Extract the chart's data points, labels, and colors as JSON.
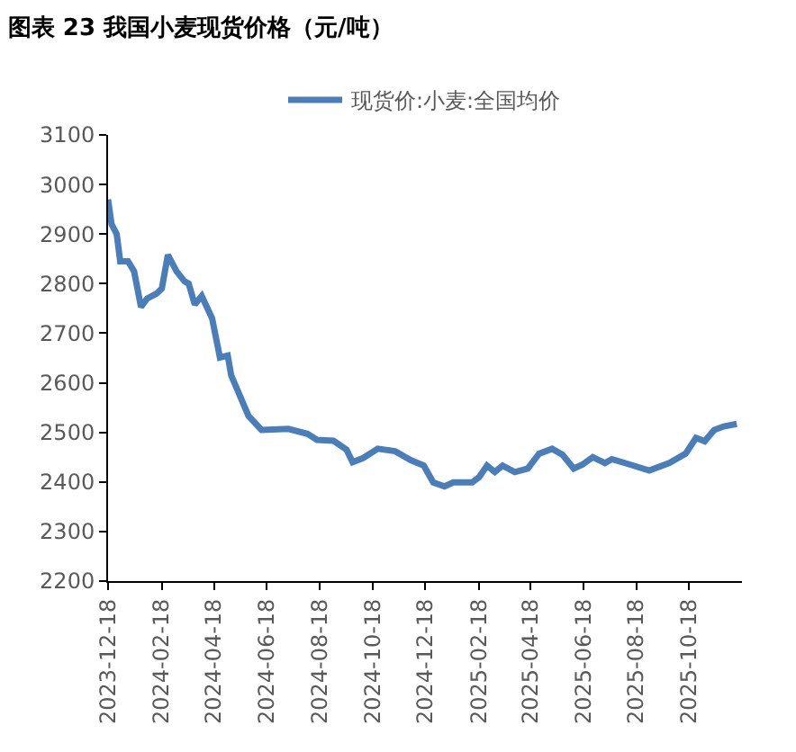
{
  "chart_data": {
    "type": "line",
    "title": "图表 23 我国小麦现货价格（元/吨）",
    "x": [
      "2023-12-18",
      "2023-12-22",
      "2023-12-28",
      "2024-01-01",
      "2024-01-10",
      "2024-01-17",
      "2024-01-25",
      "2024-02-01",
      "2024-02-12",
      "2024-02-18",
      "2024-02-25",
      "2024-03-06",
      "2024-03-15",
      "2024-03-20",
      "2024-03-27",
      "2024-04-04",
      "2024-04-16",
      "2024-04-25",
      "2024-05-04",
      "2024-05-08",
      "2024-05-17",
      "2024-05-28",
      "2024-06-12",
      "2024-07-13",
      "2024-08-04",
      "2024-08-15",
      "2024-09-03",
      "2024-09-18",
      "2024-09-25",
      "2024-10-07",
      "2024-10-24",
      "2024-11-13",
      "2024-12-01",
      "2024-12-16",
      "2024-12-27",
      "2025-01-09",
      "2025-01-19",
      "2025-02-10",
      "2025-02-18",
      "2025-02-27",
      "2025-03-08",
      "2025-03-17",
      "2025-03-31",
      "2025-04-15",
      "2025-04-28",
      "2025-05-13",
      "2025-05-25",
      "2025-06-07",
      "2025-06-17",
      "2025-06-29",
      "2025-07-13",
      "2025-07-21",
      "2025-08-11",
      "2025-09-02",
      "2025-09-25",
      "2025-10-14",
      "2025-10-26",
      "2025-11-05",
      "2025-11-16",
      "2025-11-27",
      "2025-12-12"
    ],
    "series": [
      {
        "name": "现货价:小麦:全国均价",
        "color": "#4a7ebb",
        "values": [
          2970,
          2920,
          2900,
          2845,
          2845,
          2825,
          2753,
          2770,
          2780,
          2790,
          2858,
          2825,
          2805,
          2800,
          2758,
          2775,
          2730,
          2651,
          2655,
          2615,
          2578,
          2533,
          2505,
          2507,
          2497,
          2485,
          2483,
          2465,
          2440,
          2448,
          2467,
          2462,
          2444,
          2433,
          2399,
          2391,
          2399,
          2399,
          2410,
          2433,
          2420,
          2433,
          2420,
          2427,
          2457,
          2467,
          2455,
          2427,
          2435,
          2450,
          2438,
          2446,
          2435,
          2423,
          2438,
          2457,
          2489,
          2482,
          2505,
          2512,
          2517
        ]
      }
    ],
    "xlim": [
      "2023-12-18",
      "2025-12-18"
    ],
    "xticks": [
      "2023-12-18",
      "2024-02-18",
      "2024-04-18",
      "2024-06-18",
      "2024-08-18",
      "2024-10-18",
      "2024-12-18",
      "2025-02-18",
      "2025-04-18",
      "2025-06-18",
      "2025-08-18",
      "2025-10-18"
    ],
    "ylim": [
      2200,
      3100
    ],
    "yticks": [
      2200,
      2300,
      2400,
      2500,
      2600,
      2700,
      2800,
      2900,
      3000,
      3100
    ],
    "legend": "top",
    "grid": false,
    "marker": "none",
    "line_style": "solid"
  }
}
